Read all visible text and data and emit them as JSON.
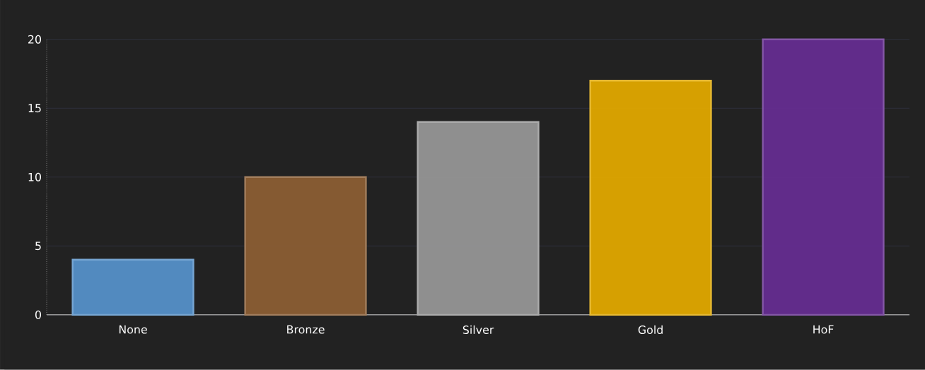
{
  "chart_data": {
    "type": "bar",
    "categories": [
      "None",
      "Bronze",
      "Silver",
      "Gold",
      "HoF"
    ],
    "values": [
      4,
      10,
      14,
      17,
      20
    ],
    "colors": [
      "#5590c8",
      "#8b5e34",
      "#969696",
      "#e0a800",
      "#652d90"
    ],
    "ylim": [
      0,
      20
    ],
    "yticks": [
      0,
      5,
      10,
      15,
      20
    ],
    "grid": "y"
  }
}
